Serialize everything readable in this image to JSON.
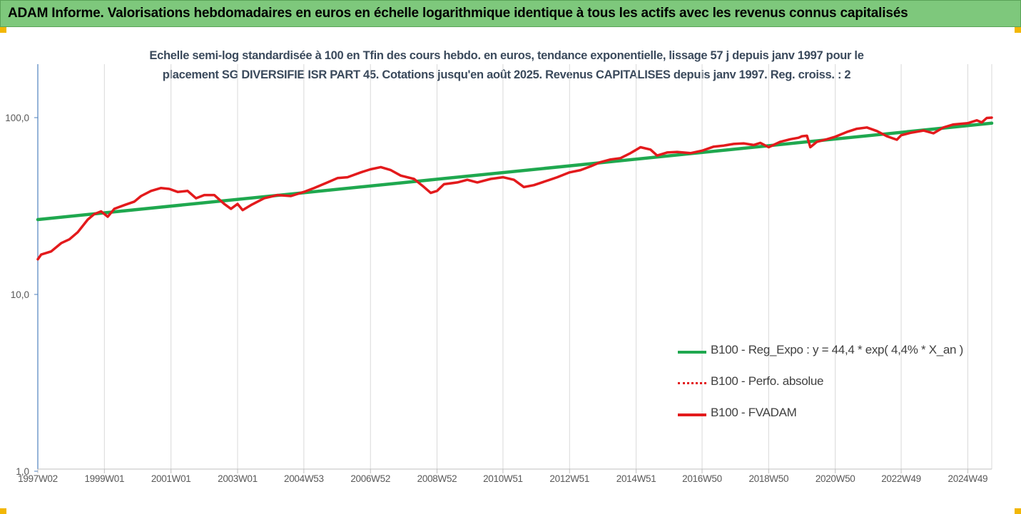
{
  "header": {
    "title": "ADAM Informe. Valorisations hebdomadaires en euros en échelle logarithmique identique à tous les actifs avec les revenus connus capitalisés"
  },
  "chart_data": {
    "type": "line",
    "title": "Echelle semi-log standardisée à 100 en Tfin des cours hebdo. en euros, tendance exponentielle, lissage 57 j depuis janv 1997 pour le placement SG DIVERSIFIE ISR PART 45. Cotations jusqu'en août 2025. Revenus CAPITALISES depuis janv 1997. Reg. croiss. : 2",
    "title_line1": "Echelle semi-log standardisée à 100 en Tfin des cours hebdo. en euros, tendance exponentielle, lissage 57 j depuis janv 1997 pour le",
    "title_line2": "placement SG DIVERSIFIE ISR PART 45. Cotations jusqu'en août 2025. Revenus CAPITALISES depuis janv 1997. Reg. croiss. : 2",
    "y_scale": "log",
    "ylim": [
      1,
      200
    ],
    "xlim": [
      1997.0,
      2025.65
    ],
    "y_ticks": [
      {
        "value": 1,
        "label": "1,0"
      },
      {
        "value": 10,
        "label": "10,0"
      },
      {
        "value": 100,
        "label": "100,0"
      }
    ],
    "x_ticks": [
      {
        "value": 1997.0,
        "label": "1997W02"
      },
      {
        "value": 1999.0,
        "label": "1999W01"
      },
      {
        "value": 2001.0,
        "label": "2001W01"
      },
      {
        "value": 2003.0,
        "label": "2003W01"
      },
      {
        "value": 2004.99,
        "label": "2004W53"
      },
      {
        "value": 2006.99,
        "label": "2006W52"
      },
      {
        "value": 2008.99,
        "label": "2008W52"
      },
      {
        "value": 2010.97,
        "label": "2010W51"
      },
      {
        "value": 2012.97,
        "label": "2012W51"
      },
      {
        "value": 2014.97,
        "label": "2014W51"
      },
      {
        "value": 2016.95,
        "label": "2016W50"
      },
      {
        "value": 2018.95,
        "label": "2018W50"
      },
      {
        "value": 2020.95,
        "label": "2020W50"
      },
      {
        "value": 2022.93,
        "label": "2022W49"
      },
      {
        "value": 2024.93,
        "label": "2024W49"
      }
    ],
    "grid": "vertical",
    "legend_position": "bottom-right",
    "series": [
      {
        "name": "B100 - Reg_Expo : y = 44,4 * exp( 4,4% *  X_an )",
        "color": "#1fa84f",
        "style": "solid",
        "points": [
          [
            1997.0,
            26.5
          ],
          [
            2025.65,
            93.0
          ]
        ]
      },
      {
        "name": "B100 - Perfo. absolue",
        "color": "#e31a1c",
        "style": "dotted",
        "points": []
      },
      {
        "name": "B100 - FVADAM",
        "color": "#e31a1c",
        "style": "solid",
        "points": [
          [
            1997.0,
            15.8
          ],
          [
            1997.1,
            16.8
          ],
          [
            1997.4,
            17.5
          ],
          [
            1997.7,
            19.5
          ],
          [
            1997.95,
            20.5
          ],
          [
            1998.2,
            22.5
          ],
          [
            1998.5,
            26.5
          ],
          [
            1998.7,
            28.5
          ],
          [
            1998.9,
            29.5
          ],
          [
            1999.1,
            27.5
          ],
          [
            1999.3,
            30.5
          ],
          [
            1999.6,
            32.0
          ],
          [
            1999.9,
            33.5
          ],
          [
            2000.1,
            36.0
          ],
          [
            2000.4,
            38.5
          ],
          [
            2000.7,
            40.0
          ],
          [
            2000.95,
            39.5
          ],
          [
            2001.2,
            38.0
          ],
          [
            2001.5,
            38.5
          ],
          [
            2001.75,
            35.0
          ],
          [
            2002.0,
            36.5
          ],
          [
            2002.3,
            36.5
          ],
          [
            2002.6,
            32.5
          ],
          [
            2002.8,
            30.5
          ],
          [
            2003.0,
            32.5
          ],
          [
            2003.15,
            30.0
          ],
          [
            2003.4,
            32.0
          ],
          [
            2003.8,
            35.0
          ],
          [
            2004.2,
            36.5
          ],
          [
            2004.6,
            36.0
          ],
          [
            2004.99,
            38.0
          ],
          [
            2005.3,
            40.0
          ],
          [
            2005.7,
            43.0
          ],
          [
            2006.0,
            45.5
          ],
          [
            2006.3,
            46.0
          ],
          [
            2006.7,
            49.0
          ],
          [
            2006.99,
            51.0
          ],
          [
            2007.3,
            52.5
          ],
          [
            2007.6,
            50.5
          ],
          [
            2007.9,
            47.0
          ],
          [
            2008.3,
            45.0
          ],
          [
            2008.6,
            40.5
          ],
          [
            2008.8,
            37.5
          ],
          [
            2008.99,
            38.5
          ],
          [
            2009.2,
            42.0
          ],
          [
            2009.6,
            43.0
          ],
          [
            2009.9,
            44.5
          ],
          [
            2010.2,
            43.0
          ],
          [
            2010.6,
            45.0
          ],
          [
            2010.97,
            46.0
          ],
          [
            2011.3,
            44.5
          ],
          [
            2011.6,
            40.5
          ],
          [
            2011.9,
            41.5
          ],
          [
            2012.3,
            44.0
          ],
          [
            2012.6,
            46.0
          ],
          [
            2012.97,
            49.0
          ],
          [
            2013.3,
            50.5
          ],
          [
            2013.6,
            53.0
          ],
          [
            2013.9,
            56.0
          ],
          [
            2014.2,
            58.0
          ],
          [
            2014.5,
            59.0
          ],
          [
            2014.8,
            63.0
          ],
          [
            2015.1,
            68.0
          ],
          [
            2015.4,
            66.0
          ],
          [
            2015.6,
            61.0
          ],
          [
            2015.9,
            63.5
          ],
          [
            2016.2,
            64.0
          ],
          [
            2016.6,
            63.0
          ],
          [
            2016.95,
            65.0
          ],
          [
            2017.3,
            68.5
          ],
          [
            2017.6,
            69.5
          ],
          [
            2017.9,
            71.0
          ],
          [
            2018.2,
            71.5
          ],
          [
            2018.5,
            70.0
          ],
          [
            2018.7,
            72.0
          ],
          [
            2018.95,
            68.0
          ],
          [
            2019.3,
            73.0
          ],
          [
            2019.6,
            75.5
          ],
          [
            2019.85,
            77.0
          ],
          [
            2019.95,
            78.5
          ],
          [
            2020.1,
            79.0
          ],
          [
            2020.2,
            68.0
          ],
          [
            2020.4,
            73.0
          ],
          [
            2020.7,
            75.5
          ],
          [
            2020.95,
            78.0
          ],
          [
            2021.3,
            83.0
          ],
          [
            2021.6,
            86.5
          ],
          [
            2021.9,
            88.0
          ],
          [
            2022.2,
            84.0
          ],
          [
            2022.5,
            78.5
          ],
          [
            2022.8,
            75.0
          ],
          [
            2022.93,
            79.5
          ],
          [
            2023.2,
            82.0
          ],
          [
            2023.6,
            84.5
          ],
          [
            2023.9,
            81.5
          ],
          [
            2024.2,
            88.0
          ],
          [
            2024.5,
            91.5
          ],
          [
            2024.93,
            93.0
          ],
          [
            2025.2,
            96.5
          ],
          [
            2025.35,
            94.0
          ],
          [
            2025.5,
            99.5
          ],
          [
            2025.65,
            100.0
          ]
        ]
      }
    ]
  }
}
